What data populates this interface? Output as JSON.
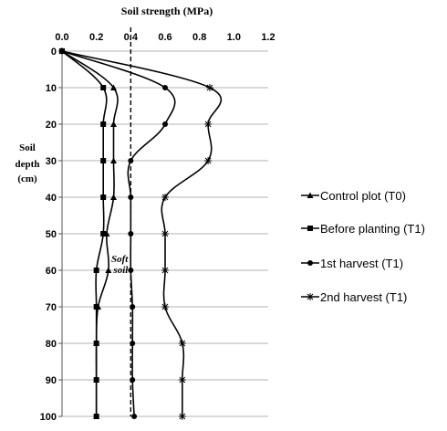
{
  "chart_data": {
    "type": "line",
    "title": "Soil strength (MPa)",
    "ylabel_lines": [
      "Soil",
      "depth",
      "(cm)"
    ],
    "x_ticks": [
      "0.0",
      "0.2",
      "0.4",
      "0.6",
      "0.8",
      "1.0",
      "1.2"
    ],
    "y_ticks": [
      "0",
      "10",
      "20",
      "30",
      "40",
      "50",
      "60",
      "70",
      "80",
      "90",
      "100"
    ],
    "xlim": [
      0,
      1.2
    ],
    "ylim": [
      0,
      100
    ],
    "y_inverted": true,
    "x_axis_position": "top",
    "grid": "horizontal",
    "legend_position": "right",
    "reference_line": {
      "x": 0.4,
      "style": "dashed",
      "label_lines": [
        "Soft",
        "soil"
      ]
    },
    "depths": [
      0,
      10,
      20,
      30,
      40,
      50,
      60,
      70,
      80,
      90,
      100
    ],
    "series": [
      {
        "name": "Control plot (T0)",
        "marker": "triangle",
        "values": [
          0,
          0.3,
          0.3,
          0.3,
          0.3,
          0.26,
          0.27,
          0.21,
          0.2,
          0.2,
          0.2
        ]
      },
      {
        "name": "Before planting (T1)",
        "marker": "square",
        "values": [
          0,
          0.24,
          0.24,
          0.24,
          0.24,
          0.24,
          0.2,
          0.2,
          0.2,
          0.2,
          0.2
        ]
      },
      {
        "name": "1st harvest (T1)",
        "marker": "circle",
        "values": [
          0,
          0.6,
          0.6,
          0.4,
          0.4,
          0.4,
          0.4,
          0.41,
          0.41,
          0.41,
          0.42
        ]
      },
      {
        "name": "2nd harvest (T1)",
        "marker": "star",
        "values": [
          0,
          0.86,
          0.85,
          0.85,
          0.6,
          0.6,
          0.6,
          0.6,
          0.7,
          0.7,
          0.7
        ]
      }
    ]
  }
}
